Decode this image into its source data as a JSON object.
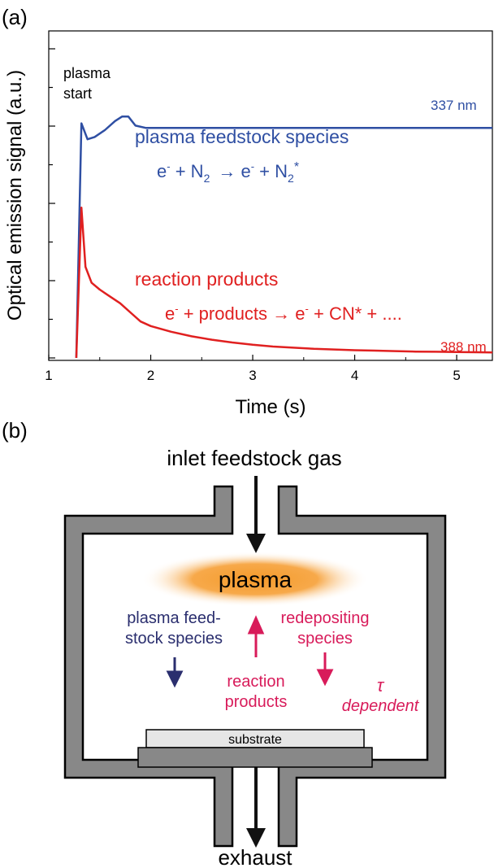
{
  "panel_a": {
    "label": "(a)",
    "ylabel": "Optical emission signal (a.u.)",
    "xlabel": "Time (s)",
    "annotation_start": [
      "plasma",
      "start"
    ],
    "blue_title": "plasma feedstock species",
    "blue_wavelength": "337 nm",
    "red_title": "reaction products",
    "red_wavelength": "388 nm",
    "eq_blue": {
      "e": "e",
      "minus": "-",
      "plus": " + N",
      "sub": "2",
      "arrow": "→",
      "rhs1": " e",
      "rhs2": " + N",
      "star": "*"
    },
    "eq_red": {
      "lhs": " + products ",
      "arrow": "→",
      "rhs": " e",
      "tail": " + CN* + ...."
    }
  },
  "chart_data": {
    "type": "line",
    "xlabel": "Time (s)",
    "ylabel": "Optical emission signal (a.u.)",
    "xlim": [
      1,
      5.35
    ],
    "xticks": [
      "1",
      "2",
      "3",
      "4",
      "5"
    ],
    "grid": false,
    "series": [
      {
        "name": "337 nm",
        "color": "#2f4fa3",
        "x": [
          1.27,
          1.32,
          1.38,
          1.45,
          1.55,
          1.65,
          1.72,
          1.78,
          1.85,
          1.95,
          2.1,
          2.3,
          2.5,
          2.7,
          2.9,
          3.1,
          3.3,
          3.5,
          3.7,
          3.9,
          4.1,
          4.3,
          4.5,
          4.7,
          4.9,
          5.1,
          5.35
        ],
        "y": [
          0.0,
          1.03,
          0.96,
          0.97,
          1.0,
          1.04,
          1.06,
          1.06,
          1.02,
          1.01,
          1.01,
          1.01,
          1.01,
          1.01,
          1.01,
          1.01,
          1.01,
          1.01,
          1.01,
          1.01,
          1.01,
          1.01,
          1.01,
          1.01,
          1.01,
          1.01,
          1.01
        ]
      },
      {
        "name": "388 nm",
        "color": "#e02020",
        "x": [
          1.27,
          1.32,
          1.36,
          1.42,
          1.5,
          1.6,
          1.7,
          1.8,
          1.9,
          2.0,
          2.2,
          2.4,
          2.6,
          2.8,
          3.0,
          3.2,
          3.4,
          3.6,
          3.8,
          4.0,
          4.2,
          4.4,
          4.6,
          4.8,
          5.0,
          5.2,
          5.35
        ],
        "y": [
          0.0,
          0.66,
          0.4,
          0.33,
          0.3,
          0.27,
          0.24,
          0.2,
          0.16,
          0.14,
          0.115,
          0.095,
          0.08,
          0.068,
          0.058,
          0.05,
          0.045,
          0.04,
          0.037,
          0.034,
          0.032,
          0.03,
          0.028,
          0.027,
          0.026,
          0.025,
          0.024
        ]
      }
    ]
  },
  "panel_b": {
    "label": "(b)",
    "inlet": "inlet feedstock gas",
    "plasma": "plasma",
    "feed_species": [
      "plasma feed-",
      "stock species"
    ],
    "reaction_products": [
      "reaction",
      "products"
    ],
    "redepositing": [
      "redepositing",
      "species"
    ],
    "tau": "τ",
    "dependent": "dependent",
    "substrate": "substrate",
    "exhaust": "exhaust",
    "colors": {
      "feed": "#2a2e6e",
      "pink": "#d81b5a",
      "chamber": "#888888",
      "plasma": "#f59a2a"
    }
  }
}
